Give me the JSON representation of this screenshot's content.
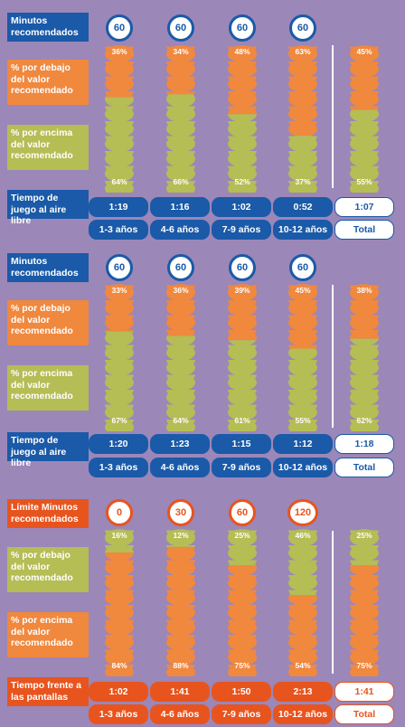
{
  "colors": {
    "blue": "#1a5aa8",
    "orange": "#f0883e",
    "green": "#b5bd55",
    "red": "#e8541e",
    "background": "#9b87b8"
  },
  "chart_data": [
    {
      "type": "bar",
      "stacked": true,
      "labels": {
        "minutes": "Minutos recomendados",
        "below": "% por debajo del valor recomendado",
        "above": "% por encima del valor recomendado",
        "time": "Tiempo de juego al aire libre"
      },
      "categories": [
        "1-3 años",
        "4-6 años",
        "7-9 años",
        "10-12 años",
        "Total"
      ],
      "minutes": [
        "60",
        "60",
        "60",
        "60",
        ""
      ],
      "series": [
        {
          "name": "% por debajo del valor recomendado",
          "values": [
            36,
            34,
            48,
            63,
            45
          ]
        },
        {
          "name": "% por encima del valor recomendado",
          "values": [
            64,
            66,
            52,
            37,
            55
          ]
        }
      ],
      "times": [
        "1:19",
        "1:16",
        "1:02",
        "0:52",
        "1:07"
      ]
    },
    {
      "type": "bar",
      "stacked": true,
      "labels": {
        "minutes": "Minutos recomendados",
        "below": "% por debajo del valor recomendado",
        "above": "% por encima del valor recomendado",
        "time": "Tiempo de juego al aire libre"
      },
      "categories": [
        "1-3 años",
        "4-6 años",
        "7-9 años",
        "10-12 años",
        "Total"
      ],
      "minutes": [
        "60",
        "60",
        "60",
        "60",
        ""
      ],
      "series": [
        {
          "name": "% por debajo del valor recomendado",
          "values": [
            33,
            36,
            39,
            45,
            38
          ]
        },
        {
          "name": "% por encima del valor recomendado",
          "values": [
            67,
            64,
            61,
            55,
            62
          ]
        }
      ],
      "times": [
        "1:20",
        "1:23",
        "1:15",
        "1:12",
        "1:18"
      ]
    },
    {
      "type": "bar",
      "stacked": true,
      "labels": {
        "minutes": "Límite Minutos recomendados",
        "below": "% por debajo del valor recomendado",
        "above": "% por encima del valor recomendado",
        "time": "Tiempo frente a las pantallas"
      },
      "categories": [
        "1-3 años",
        "4-6 años",
        "7-9 años",
        "10-12 años",
        "Total"
      ],
      "minutes": [
        "0",
        "30",
        "60",
        "120",
        ""
      ],
      "series": [
        {
          "name": "% por debajo del valor recomendado",
          "values": [
            16,
            12,
            25,
            46,
            25
          ]
        },
        {
          "name": "% por encima del valor recomendado",
          "values": [
            84,
            88,
            75,
            54,
            75
          ]
        }
      ],
      "times": [
        "1:02",
        "1:41",
        "1:50",
        "2:13",
        "1:41"
      ]
    }
  ]
}
